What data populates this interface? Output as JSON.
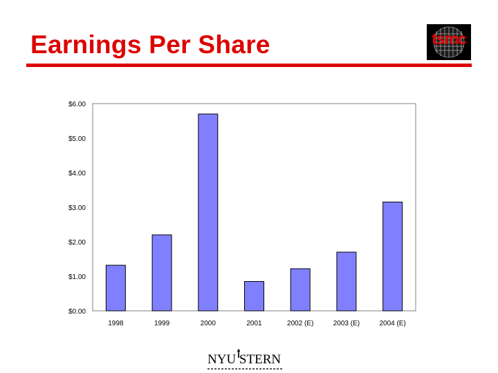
{
  "slide": {
    "title": "Earnings Per Share",
    "logo_text": "tsmc",
    "footer_text": "NYU STERN"
  },
  "colors": {
    "title": "#dd0000",
    "bar_fill": "#8080ff",
    "bar_stroke": "#000000",
    "plot_border": "#808080"
  },
  "chart_data": {
    "type": "bar",
    "title": "",
    "xlabel": "",
    "ylabel": "",
    "categories": [
      "1998",
      "1999",
      "2000",
      "2001",
      "2002 (E)",
      "2003 (E)",
      "2004 (E)"
    ],
    "series": [
      {
        "values": [
          1.32,
          2.2,
          5.7,
          0.85,
          1.22,
          1.7,
          3.15
        ]
      }
    ],
    "ylim": [
      0,
      6
    ],
    "yticks": [
      0,
      1,
      2,
      3,
      4,
      5,
      6
    ],
    "ytick_labels": [
      "$0.00",
      "$1.00",
      "$2.00",
      "$3.00",
      "$4.00",
      "$5.00",
      "$6.00"
    ],
    "grid": false,
    "legend": "none"
  }
}
